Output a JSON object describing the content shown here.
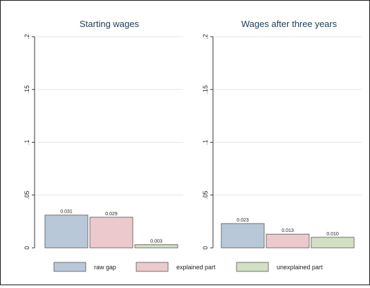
{
  "chart_data": [
    {
      "type": "bar",
      "title": "Starting wages",
      "categories": [
        "raw gap",
        "explained part",
        "unexplained part"
      ],
      "values": [
        0.031,
        0.029,
        0.003
      ],
      "data_labels": [
        "0.031",
        "0.029",
        "0.003"
      ],
      "colors": [
        "#b8c8d8",
        "#ecc9cd",
        "#d3e0c3"
      ],
      "ylim": [
        0,
        0.2
      ],
      "yticks": [
        0,
        0.05,
        0.1,
        0.15,
        0.2
      ],
      "ytick_labels": [
        "0",
        ".05",
        ".1",
        ".15",
        ".2"
      ],
      "grid": true
    },
    {
      "type": "bar",
      "title": "Wages after three years",
      "categories": [
        "raw gap",
        "explained part",
        "unexplained part"
      ],
      "values": [
        0.023,
        0.013,
        0.01
      ],
      "data_labels": [
        "0.023",
        "0.013",
        "0.010"
      ],
      "colors": [
        "#b8c8d8",
        "#ecc9cd",
        "#d3e0c3"
      ],
      "ylim": [
        0,
        0.2
      ],
      "yticks": [
        0,
        0.05,
        0.1,
        0.15,
        0.2
      ],
      "ytick_labels": [
        "0",
        ".05",
        ".1",
        ".15",
        ".2"
      ],
      "grid": true
    }
  ],
  "legend": {
    "position": "bottom",
    "items": [
      {
        "label": "raw gap",
        "color": "#b8c8d8"
      },
      {
        "label": "explained part",
        "color": "#ecc9cd"
      },
      {
        "label": "unexplained part",
        "color": "#d3e0c3"
      }
    ]
  }
}
